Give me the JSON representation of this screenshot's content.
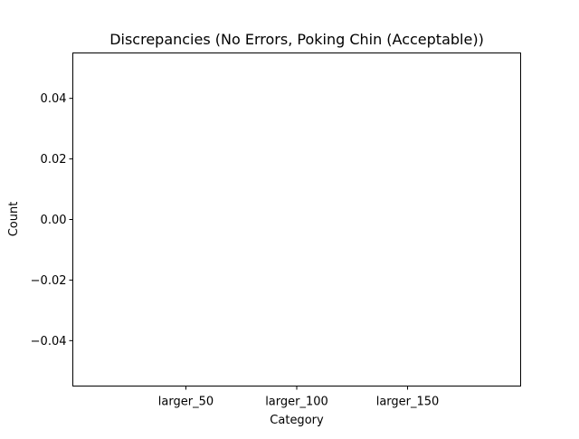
{
  "chart_data": {
    "type": "bar",
    "title": "Discrepancies (No Errors, Poking Chin (Acceptable))",
    "xlabel": "Category",
    "ylabel": "Count",
    "categories": [
      "larger_50",
      "larger_100",
      "larger_150"
    ],
    "values": [
      0,
      0,
      0
    ],
    "ylim": [
      -0.055,
      0.055
    ],
    "yticks": [
      0.04,
      0.02,
      0.0,
      -0.02,
      -0.04
    ],
    "ytick_labels": [
      "0.04",
      "0.02",
      "0.00",
      "−0.02",
      "−0.04"
    ],
    "grid": false,
    "bar_color": "#1f77b4",
    "axis_color": "#000000"
  }
}
